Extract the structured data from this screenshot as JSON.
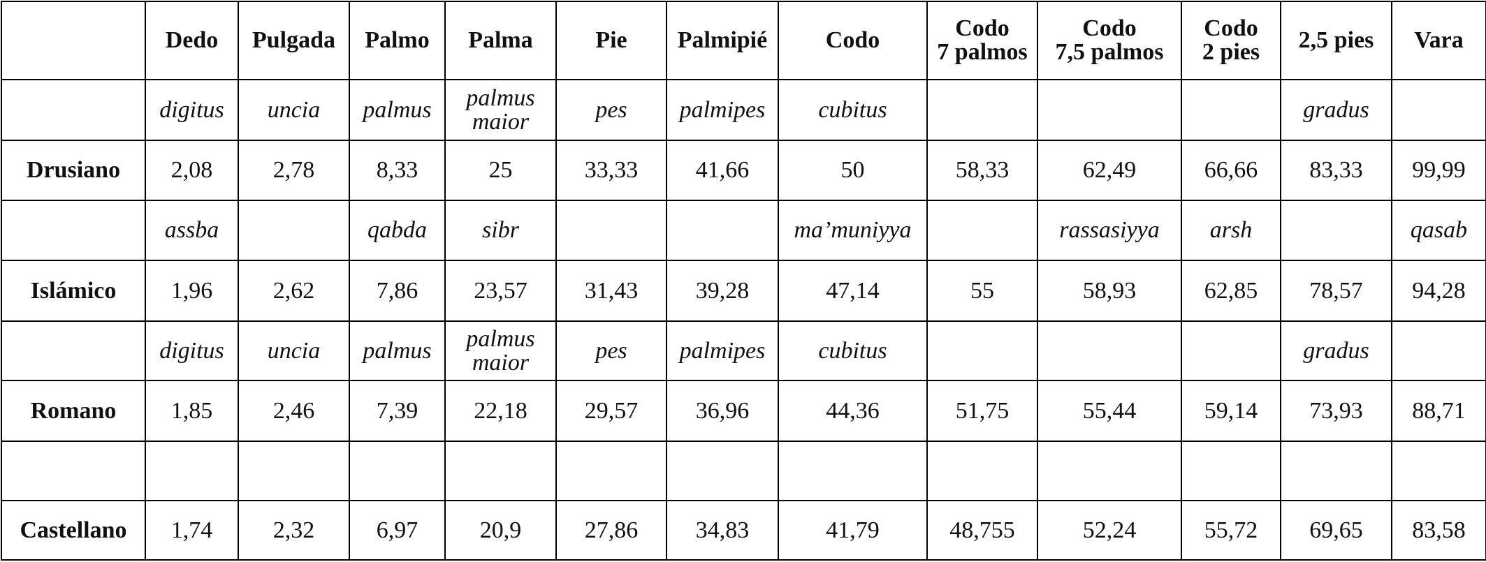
{
  "table": {
    "header": [
      "Dedo",
      "Pulgada",
      "Palmo",
      "Palma",
      "Pie",
      "Palmipié",
      "Codo",
      "Codo\n7 palmos",
      "Codo\n7,5 palmos",
      "Codo\n2 pies",
      "2,5 pies",
      "Vara"
    ],
    "rows": [
      {
        "label": null,
        "cells": [
          "digitus",
          "uncia",
          "palmus",
          "palmus\nmaior",
          "pes",
          "palmipes",
          "cubitus",
          null,
          null,
          null,
          "gradus",
          null
        ]
      },
      {
        "label": "Drusiano",
        "cells": [
          "2,08",
          "2,78",
          "8,33",
          "25",
          "33,33",
          "41,66",
          "50",
          "58,33",
          "62,49",
          "66,66",
          "83,33",
          "99,99"
        ]
      },
      {
        "label": null,
        "cells": [
          "assba",
          null,
          "qabda",
          "sibr",
          null,
          null,
          "ma’muniyya",
          null,
          "rassasiyya",
          "arsh",
          null,
          "qasab"
        ]
      },
      {
        "label": "Islámico",
        "cells": [
          "1,96",
          "2,62",
          "7,86",
          "23,57",
          "31,43",
          "39,28",
          "47,14",
          "55",
          "58,93",
          "62,85",
          "78,57",
          "94,28"
        ]
      },
      {
        "label": null,
        "cells": [
          "digitus",
          "uncia",
          "palmus",
          "palmus\nmaior",
          "pes",
          "palmipes",
          "cubitus",
          null,
          null,
          null,
          "gradus",
          null
        ]
      },
      {
        "label": "Romano",
        "cells": [
          "1,85",
          "2,46",
          "7,39",
          "22,18",
          "29,57",
          "36,96",
          "44,36",
          "51,75",
          "55,44",
          "59,14",
          "73,93",
          "88,71"
        ]
      },
      {
        "label": null,
        "cells": [
          null,
          null,
          null,
          null,
          null,
          null,
          null,
          null,
          null,
          null,
          null,
          null
        ]
      },
      {
        "label": "Castellano",
        "cells": [
          "1,74",
          "2,32",
          "6,97",
          "20,9",
          "27,86",
          "34,83",
          "41,79",
          "48,755",
          "52,24",
          "55,72",
          "69,65",
          "83,58"
        ]
      }
    ]
  }
}
